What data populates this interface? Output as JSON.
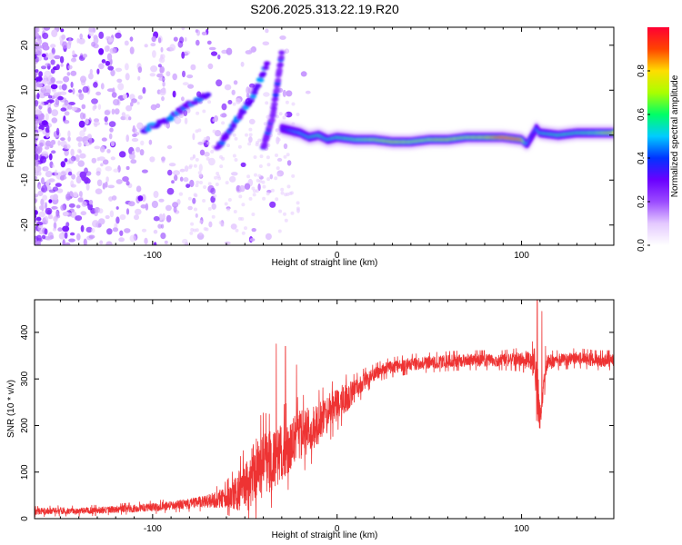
{
  "title": "S206.2025.313.22.19.R20",
  "chart_data": [
    {
      "type": "heatmap",
      "xlabel": "Height of straight line (km)",
      "ylabel": "Frequency (Hz)",
      "xlim": [
        -164,
        150
      ],
      "ylim": [
        -24.5,
        24
      ],
      "xticks": [
        -100,
        0,
        100
      ],
      "yticks": [
        -20,
        -10,
        0,
        10,
        20
      ],
      "colorbar": {
        "label": "Normalized spectral amplitude",
        "range": [
          0,
          1
        ],
        "ticks": [
          0.0,
          0.2,
          0.4,
          0.6,
          0.8
        ],
        "colors": [
          "#ffffff",
          "#e4c9ff",
          "#9b4bff",
          "#6a00ff",
          "#0033ff",
          "#00ccff",
          "#00ff66",
          "#aaff00",
          "#ffdd00",
          "#ff4400",
          "#ff0033"
        ]
      },
      "ridge": {
        "x": [
          -30,
          -25,
          -20,
          -15,
          -10,
          -5,
          0,
          10,
          20,
          30,
          40,
          50,
          60,
          70,
          80,
          90,
          100,
          103,
          106,
          108,
          110,
          120,
          130,
          140,
          150
        ],
        "y": [
          1.5,
          1.0,
          0.5,
          -0.5,
          0.0,
          -1.0,
          -0.5,
          -1.0,
          -1.0,
          -1.5,
          -1.5,
          -1.0,
          -1.0,
          -0.5,
          -0.5,
          -0.5,
          -1.0,
          -2.0,
          0.0,
          1.5,
          0.5,
          0.0,
          0.5,
          0.5,
          0.5
        ],
        "amplitude": [
          0.35,
          0.45,
          0.5,
          0.55,
          0.6,
          0.55,
          0.6,
          0.65,
          0.7,
          0.75,
          0.7,
          0.7,
          0.75,
          0.7,
          0.75,
          0.95,
          0.9,
          0.5,
          0.4,
          0.45,
          0.55,
          0.6,
          0.6,
          0.65,
          0.8
        ]
      },
      "descending_branches": [
        {
          "x": [
            -105,
            -90,
            -80,
            -70
          ],
          "y": [
            1,
            4,
            7,
            9
          ],
          "amplitude": 0.3
        },
        {
          "x": [
            -65,
            -55,
            -45,
            -38
          ],
          "y": [
            -3,
            3,
            9,
            16
          ],
          "amplitude": 0.3
        },
        {
          "x": [
            -40,
            -35,
            -30
          ],
          "y": [
            -3,
            4,
            18
          ],
          "amplitude": 0.25
        }
      ]
    },
    {
      "type": "line",
      "xlabel": "Height of straight line (km)",
      "ylabel": "SNR (10 * v/v)",
      "xlim": [
        -164,
        150
      ],
      "ylim": [
        0,
        470
      ],
      "xticks": [
        -100,
        0,
        100
      ],
      "yticks": [
        0,
        100,
        200,
        300,
        400
      ],
      "color": "#ee3333",
      "series": [
        {
          "name": "SNR",
          "x": [
            -164,
            -150,
            -140,
            -130,
            -120,
            -110,
            -100,
            -90,
            -80,
            -70,
            -60,
            -55,
            -50,
            -45,
            -40,
            -35,
            -30,
            -25,
            -20,
            -15,
            -10,
            -5,
            0,
            5,
            10,
            15,
            20,
            25,
            30,
            40,
            50,
            60,
            70,
            80,
            90,
            100,
            105,
            107,
            108,
            109,
            110,
            112,
            114,
            120,
            130,
            140,
            150
          ],
          "mean": [
            15,
            17,
            16,
            18,
            20,
            22,
            24,
            28,
            32,
            38,
            45,
            55,
            70,
            95,
            115,
            125,
            145,
            160,
            180,
            190,
            205,
            225,
            245,
            260,
            275,
            295,
            310,
            320,
            325,
            332,
            335,
            338,
            340,
            340,
            340,
            342,
            340,
            330,
            300,
            260,
            215,
            285,
            335,
            340,
            345,
            340,
            340
          ],
          "noise": [
            8,
            8,
            8,
            8,
            8,
            9,
            10,
            10,
            12,
            15,
            25,
            40,
            60,
            80,
            80,
            70,
            70,
            65,
            60,
            55,
            50,
            45,
            40,
            35,
            25,
            20,
            15,
            15,
            15,
            15,
            15,
            15,
            15,
            15,
            15,
            18,
            25,
            40,
            60,
            60,
            30,
            25,
            18,
            15,
            15,
            15,
            15
          ],
          "spikes": [
            {
              "x": -33,
              "y": 375
            },
            {
              "x": -28,
              "y": 370
            },
            {
              "x": -22,
              "y": 330
            },
            {
              "x": 108.5,
              "y": 470
            },
            {
              "x": 111,
              "y": 445
            },
            {
              "x": 113,
              "y": 370
            }
          ]
        }
      ]
    }
  ]
}
